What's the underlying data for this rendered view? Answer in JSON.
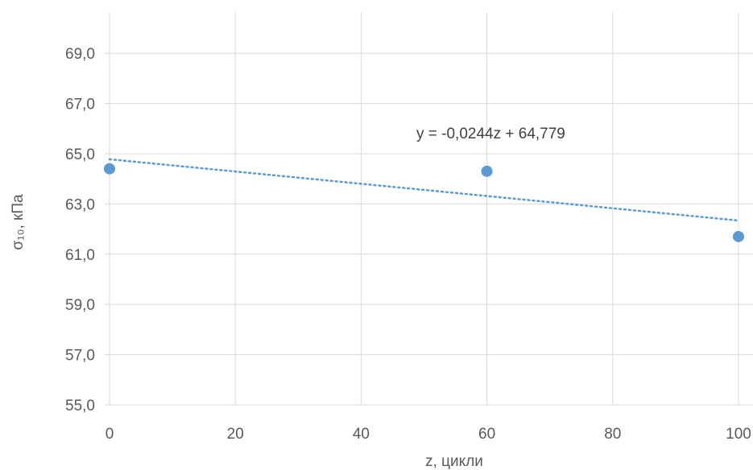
{
  "chart_data": {
    "type": "scatter",
    "xlabel": "z, цикли",
    "ylabel": "σ₁₀, кПа",
    "xlim": [
      0,
      100
    ],
    "ylim": [
      55,
      70
    ],
    "x_ticks": [
      "0",
      "20",
      "40",
      "60",
      "80",
      "100"
    ],
    "y_ticks": [
      "55,0",
      "57,0",
      "59,0",
      "61,0",
      "63,0",
      "65,0",
      "67,0",
      "69,0"
    ],
    "grid": true,
    "series": [
      {
        "points": [
          {
            "x": 0,
            "y": 64.4
          },
          {
            "x": 60,
            "y": 64.3
          },
          {
            "x": 100,
            "y": 61.7
          }
        ]
      }
    ],
    "trendline": {
      "slope": -0.0244,
      "intercept": 64.779,
      "equation_label": "y = -0,0244z + 64,779"
    },
    "colors": {
      "marker": "#5B9BD5",
      "trendline": "#5B9BD5",
      "grid": "#D9D9D9",
      "text": "#595959"
    }
  }
}
